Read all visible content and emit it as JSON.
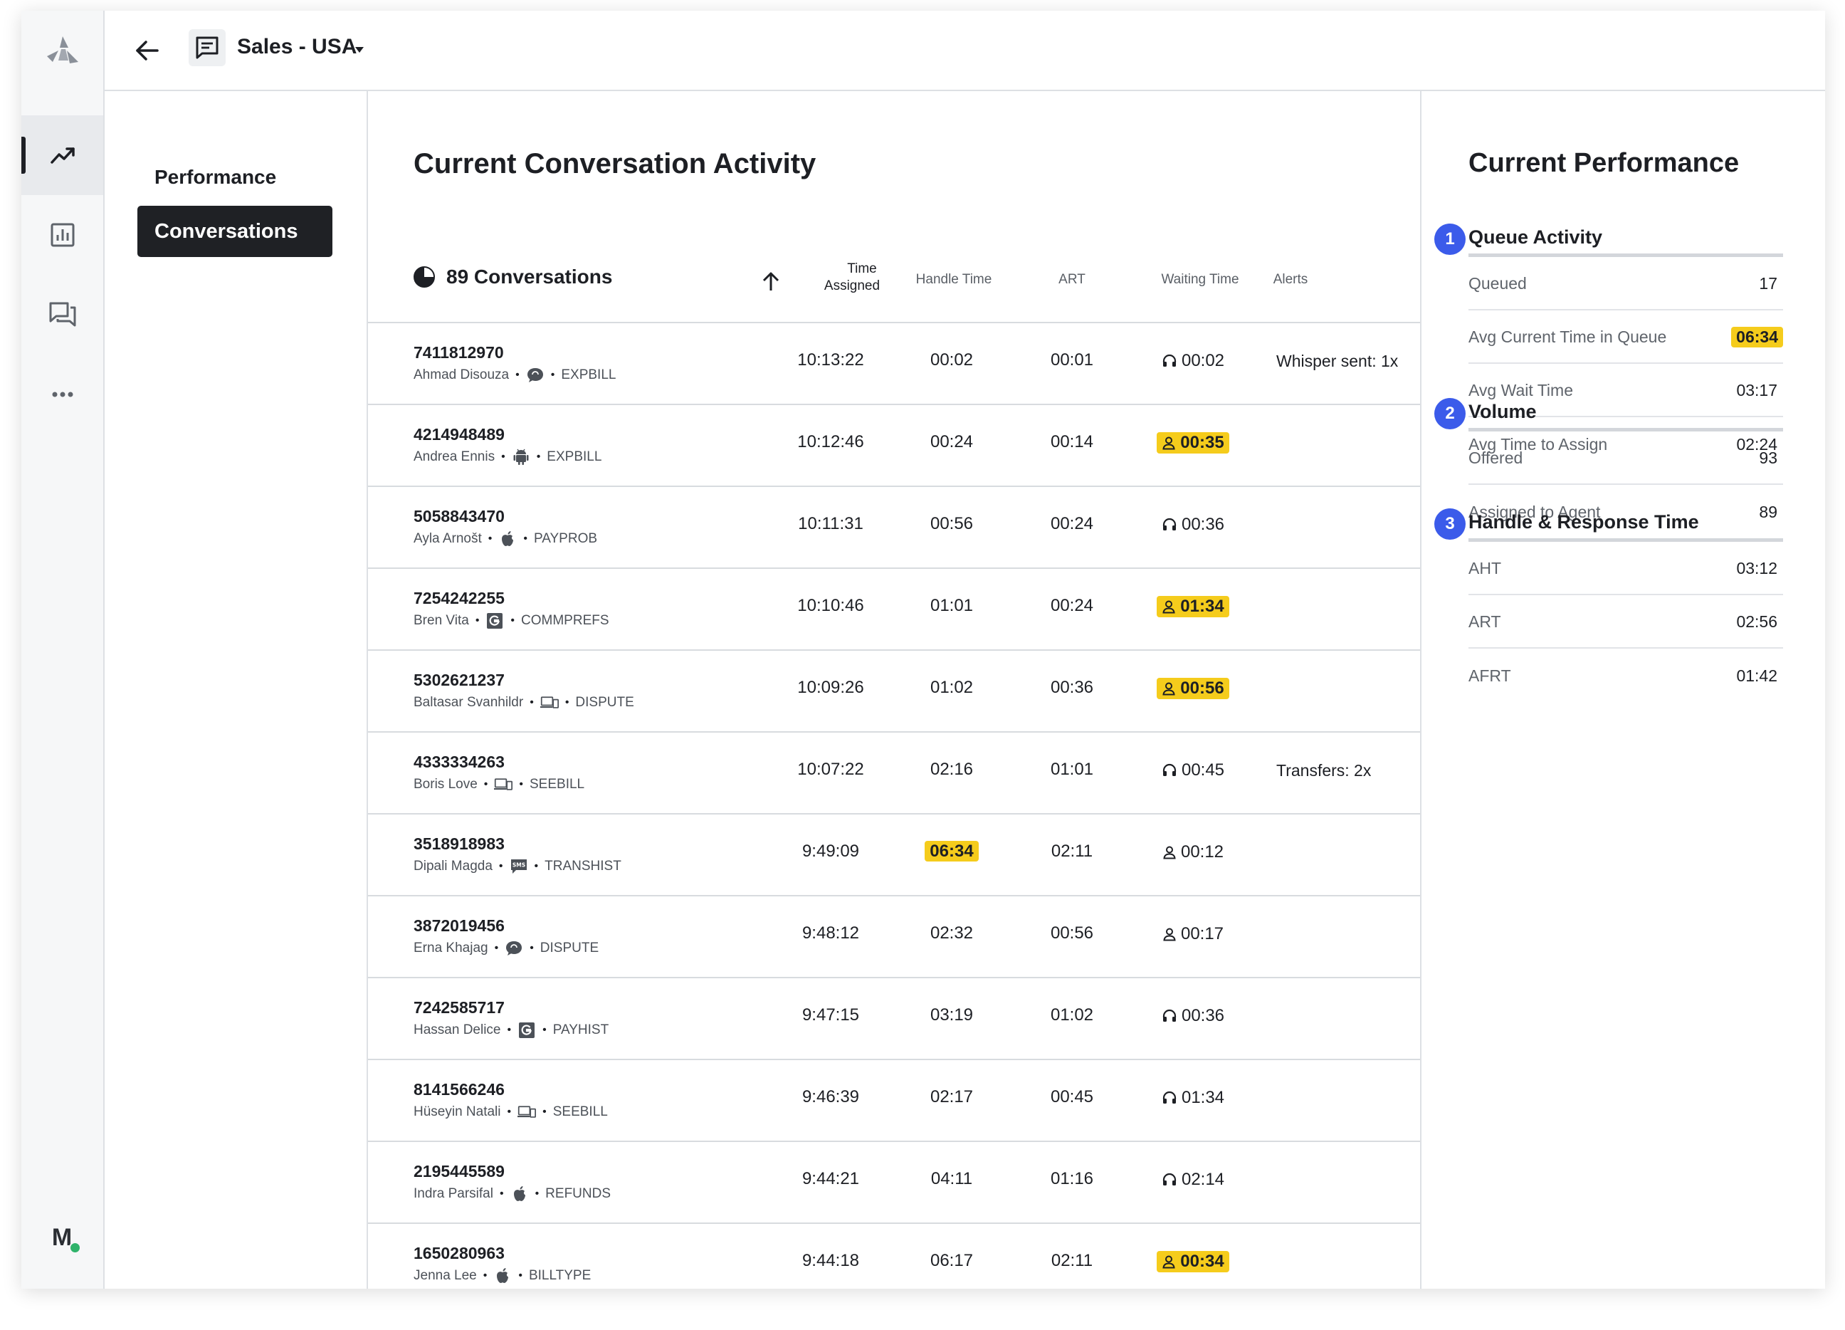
{
  "header": {
    "title": "Sales - USA"
  },
  "subnav": {
    "performance_label": "Performance",
    "conversations_label": "Conversations"
  },
  "main": {
    "title": "Current Conversation Activity",
    "count_label": "89 Conversations",
    "columns": {
      "time_assigned_1": "Time",
      "time_assigned_2": "Assigned",
      "handle_time": "Handle Time",
      "art": "ART",
      "waiting_time": "Waiting Time",
      "alerts": "Alerts"
    },
    "rows": [
      {
        "id": "7411812970",
        "name": "Ahmad Disouza",
        "channel": "chat-bubble-icon",
        "queue": "EXPBILL",
        "time": "10:13:22",
        "handle": "00:02",
        "art": "00:01",
        "wait": "00:02",
        "wait_icon": "headset-icon",
        "wait_hl": false,
        "handle_hl": false,
        "alert": "Whisper sent: 1x"
      },
      {
        "id": "4214948489",
        "name": "Andrea Ennis",
        "channel": "android-icon",
        "queue": "EXPBILL",
        "time": "10:12:46",
        "handle": "00:24",
        "art": "00:14",
        "wait": "00:35",
        "wait_icon": "person-icon",
        "wait_hl": true,
        "handle_hl": false,
        "alert": ""
      },
      {
        "id": "5058843470",
        "name": "Ayla Arnošt",
        "channel": "apple-icon",
        "queue": "PAYPROB",
        "time": "10:11:31",
        "handle": "00:56",
        "art": "00:24",
        "wait": "00:36",
        "wait_icon": "headset-icon",
        "wait_hl": false,
        "handle_hl": false,
        "alert": ""
      },
      {
        "id": "7254242255",
        "name": "Bren Vita",
        "channel": "google-icon",
        "queue": "COMMPREFS",
        "time": "10:10:46",
        "handle": "01:01",
        "art": "00:24",
        "wait": "01:34",
        "wait_icon": "person-icon",
        "wait_hl": true,
        "handle_hl": false,
        "alert": ""
      },
      {
        "id": "5302621237",
        "name": "Baltasar Svanhildr",
        "channel": "devices-icon",
        "queue": "DISPUTE",
        "time": "10:09:26",
        "handle": "01:02",
        "art": "00:36",
        "wait": "00:56",
        "wait_icon": "person-icon",
        "wait_hl": true,
        "handle_hl": false,
        "alert": ""
      },
      {
        "id": "4333334263",
        "name": "Boris Love",
        "channel": "devices-icon",
        "queue": "SEEBILL",
        "time": "10:07:22",
        "handle": "02:16",
        "art": "01:01",
        "wait": "00:45",
        "wait_icon": "headset-icon",
        "wait_hl": false,
        "handle_hl": false,
        "alert": "Transfers: 2x"
      },
      {
        "id": "3518918983",
        "name": "Dipali Magda",
        "channel": "sms-icon",
        "queue": "TRANSHIST",
        "time": "9:49:09",
        "handle": "06:34",
        "art": "02:11",
        "wait": "00:12",
        "wait_icon": "person-icon",
        "wait_hl": false,
        "handle_hl": true,
        "alert": ""
      },
      {
        "id": "3872019456",
        "name": "Erna Khajag",
        "channel": "chat-bubble-icon",
        "queue": "DISPUTE",
        "time": "9:48:12",
        "handle": "02:32",
        "art": "00:56",
        "wait": "00:17",
        "wait_icon": "person-icon",
        "wait_hl": false,
        "handle_hl": false,
        "alert": ""
      },
      {
        "id": "7242585717",
        "name": "Hassan Delice",
        "channel": "google-icon",
        "queue": "PAYHIST",
        "time": "9:47:15",
        "handle": "03:19",
        "art": "01:02",
        "wait": "00:36",
        "wait_icon": "headset-icon",
        "wait_hl": false,
        "handle_hl": false,
        "alert": ""
      },
      {
        "id": "8141566246",
        "name": "Hüseyin Natali",
        "channel": "devices-icon",
        "queue": "SEEBILL",
        "time": "9:46:39",
        "handle": "02:17",
        "art": "00:45",
        "wait": "01:34",
        "wait_icon": "headset-icon",
        "wait_hl": false,
        "handle_hl": false,
        "alert": ""
      },
      {
        "id": "2195445589",
        "name": "Indra Parsifal",
        "channel": "apple-icon",
        "queue": "REFUNDS",
        "time": "9:44:21",
        "handle": "04:11",
        "art": "01:16",
        "wait": "02:14",
        "wait_icon": "headset-icon",
        "wait_hl": false,
        "handle_hl": false,
        "alert": ""
      },
      {
        "id": "1650280963",
        "name": "Jenna Lee",
        "channel": "apple-icon",
        "queue": "BILLTYPE",
        "time": "9:44:18",
        "handle": "06:17",
        "art": "02:11",
        "wait": "00:34",
        "wait_icon": "person-icon",
        "wait_hl": true,
        "handle_hl": false,
        "alert": ""
      }
    ]
  },
  "right": {
    "title": "Current Performance",
    "sections": [
      {
        "badge": "1",
        "title": "Queue Activity",
        "metrics": [
          {
            "label": "Queued",
            "value": "17",
            "hl": false
          },
          {
            "label": "Avg Current Time in Queue",
            "value": "06:34",
            "hl": true
          },
          {
            "label": "Avg Wait Time",
            "value": "03:17",
            "hl": false
          },
          {
            "label": "Avg Time to Assign",
            "value": "02:24",
            "hl": false
          }
        ]
      },
      {
        "badge": "2",
        "title": "Volume",
        "metrics": [
          {
            "label": "Offered",
            "value": "93",
            "hl": false
          },
          {
            "label": "Assigned to Agent",
            "value": "89",
            "hl": false
          }
        ]
      },
      {
        "badge": "3",
        "title": "Handle & Response Time",
        "metrics": [
          {
            "label": "AHT",
            "value": "03:12",
            "hl": false
          },
          {
            "label": "ART",
            "value": "02:56",
            "hl": false
          },
          {
            "label": "AFRT",
            "value": "01:42",
            "hl": false
          }
        ]
      }
    ]
  },
  "user": {
    "avatar_initial": "M",
    "status_color": "#2fb36a"
  },
  "colors": {
    "highlight": "#f5cc1c",
    "badge": "#3b5bea",
    "active_button": "#1f2125"
  }
}
